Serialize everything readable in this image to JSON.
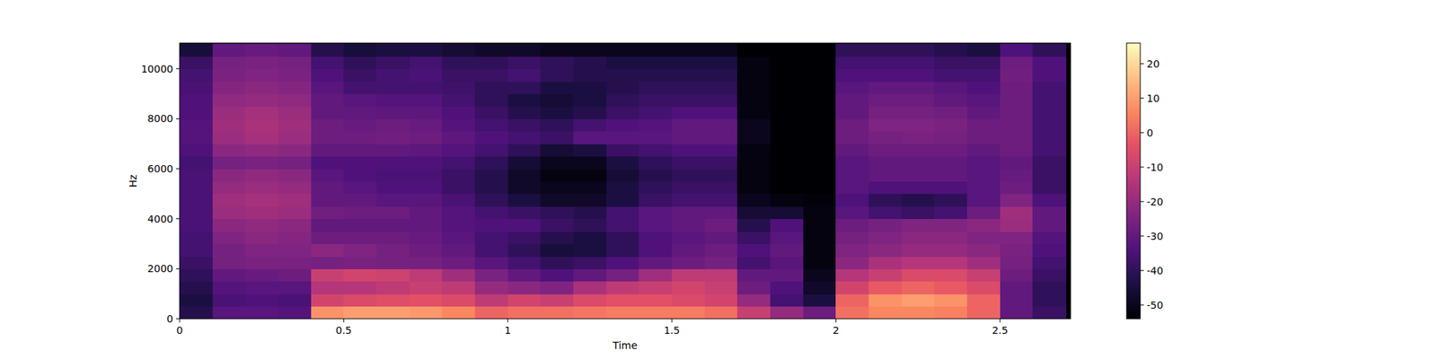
{
  "chart_data": {
    "type": "heatmap",
    "xlabel": "Time",
    "ylabel": "Hz",
    "x": [
      0,
      0.1,
      0.2,
      0.3,
      0.4,
      0.5,
      0.6,
      0.7,
      0.8,
      0.9,
      1.0,
      1.1,
      1.2,
      1.3,
      1.4,
      1.5,
      1.6,
      1.7,
      1.8,
      1.9,
      2.0,
      2.1,
      2.2,
      2.3,
      2.4,
      2.5,
      2.6,
      2.7
    ],
    "y": [
      0,
      500,
      1000,
      1500,
      2000,
      2500,
      3000,
      3500,
      4000,
      4500,
      5000,
      5500,
      6000,
      6500,
      7000,
      7500,
      8000,
      8500,
      9000,
      9500,
      10000,
      10500,
      11000
    ],
    "xlim": [
      0,
      2.715
    ],
    "ylim": [
      0,
      11025
    ],
    "xticks": [
      0,
      0.5,
      1,
      1.5,
      2,
      2.5
    ],
    "yticks": [
      0,
      2000,
      4000,
      6000,
      8000,
      10000
    ],
    "colorbar_lim": [
      -54,
      26
    ],
    "colorbar_ticks": [
      -50,
      -40,
      -30,
      -20,
      -10,
      0,
      10,
      20
    ],
    "cells": [
      [
        -42,
        -44,
        -42,
        -40,
        -38,
        -36,
        -36,
        -35,
        -35,
        -35,
        -35,
        -35,
        -36,
        -34,
        -33,
        -33,
        -34,
        -34,
        -35,
        -36,
        -38,
        -45
      ],
      [
        -32,
        -35,
        -33,
        -30,
        -26,
        -26,
        -24,
        -22,
        -19,
        -18,
        -20,
        -22,
        -26,
        -22,
        -19,
        -18,
        -19,
        -21,
        -23,
        -25,
        -26,
        -30
      ],
      [
        -32,
        -34,
        -32,
        -29,
        -25,
        -24,
        -22,
        -21,
        -18,
        -17,
        -19,
        -21,
        -25,
        -21,
        -17,
        -16,
        -17,
        -20,
        -22,
        -24,
        -25,
        -29
      ],
      [
        -33,
        -35,
        -32,
        -28,
        -25,
        -24,
        -23,
        -22,
        -19,
        -18,
        -20,
        -22,
        -26,
        -22,
        -19,
        -18,
        -19,
        -21,
        -23,
        -25,
        -26,
        -30
      ],
      [
        8,
        -8,
        -14,
        -10,
        -26,
        -22,
        -28,
        -30,
        -27,
        -30,
        -30,
        -32,
        -34,
        -30,
        -28,
        -28,
        -30,
        -30,
        -32,
        -34,
        -36,
        -42
      ],
      [
        10,
        -6,
        -14,
        -8,
        -25,
        -24,
        -28,
        -30,
        -28,
        -30,
        -32,
        -34,
        -34,
        -30,
        -28,
        -29,
        -30,
        -32,
        -36,
        -38,
        -40,
        -45
      ],
      [
        10,
        -5,
        -12,
        -9,
        -26,
        -26,
        -28,
        -30,
        -28,
        -32,
        -34,
        -35,
        -34,
        -30,
        -27,
        -28,
        -31,
        -33,
        -36,
        -36,
        -38,
        -44
      ],
      [
        9,
        -4,
        -10,
        -12,
        -26,
        -28,
        -29,
        -30,
        -30,
        -32,
        -34,
        -35,
        -34,
        -31,
        -28,
        -29,
        -31,
        -33,
        -36,
        -35,
        -36,
        -44
      ],
      [
        6,
        -6,
        -12,
        -18,
        -28,
        -30,
        -32,
        -33,
        -33,
        -35,
        -38,
        -38,
        -36,
        -33,
        -31,
        -33,
        -34,
        -36,
        -37,
        -38,
        -40,
        -46
      ],
      [
        0,
        -12,
        -20,
        -25,
        -32,
        -36,
        -36,
        -34,
        -36,
        -40,
        -42,
        -42,
        -40,
        -36,
        -34,
        -36,
        -38,
        -40,
        -40,
        -38,
        -40,
        -48
      ],
      [
        2,
        -8,
        -22,
        -30,
        -36,
        -40,
        -38,
        -34,
        -38,
        -44,
        -48,
        -48,
        -46,
        -40,
        -36,
        -38,
        -42,
        -44,
        -40,
        -36,
        -38,
        -48
      ],
      [
        2,
        -10,
        -24,
        -34,
        -40,
        -45,
        -42,
        -38,
        -40,
        -48,
        -50,
        -52,
        -50,
        -46,
        -38,
        -40,
        -44,
        -46,
        -44,
        -40,
        -40,
        -50
      ],
      [
        3,
        -6,
        -16,
        -30,
        -38,
        -44,
        -44,
        -40,
        -42,
        -48,
        -50,
        -52,
        -50,
        -44,
        -32,
        -36,
        -42,
        -44,
        -44,
        -42,
        -42,
        -50
      ],
      [
        4,
        -4,
        -12,
        -26,
        -34,
        -40,
        -40,
        -36,
        -36,
        -44,
        -44,
        -46,
        -44,
        -38,
        -32,
        -34,
        -38,
        -40,
        -42,
        -42,
        -44,
        -50
      ],
      [
        4,
        -4,
        -10,
        -18,
        -30,
        -34,
        -34,
        -32,
        -32,
        -38,
        -40,
        -42,
        -40,
        -36,
        -32,
        -33,
        -36,
        -38,
        -40,
        -42,
        -44,
        -50
      ],
      [
        4,
        -6,
        -8,
        -12,
        -28,
        -30,
        -32,
        -30,
        -30,
        -36,
        -38,
        -40,
        -38,
        -34,
        -30,
        -30,
        -34,
        -38,
        -40,
        -42,
        -44,
        -50
      ],
      [
        2,
        -8,
        -10,
        -12,
        -26,
        -28,
        -30,
        -28,
        -30,
        -36,
        -38,
        -40,
        -38,
        -34,
        -30,
        -30,
        -34,
        -38,
        -40,
        -42,
        -44,
        -50
      ],
      [
        -10,
        -20,
        -28,
        -30,
        -36,
        -34,
        -38,
        -42,
        -46,
        -50,
        -52,
        -52,
        -52,
        -52,
        -50,
        -50,
        -52,
        -52,
        -52,
        -52,
        -52,
        -54
      ],
      [
        -20,
        -36,
        -34,
        -30,
        -32,
        -30,
        -32,
        -34,
        -46,
        -52,
        -54,
        -54,
        -54,
        -54,
        -54,
        -54,
        -54,
        -54,
        -54,
        -54,
        -54,
        -54
      ],
      [
        -28,
        -44,
        -48,
        -50,
        -52,
        -52,
        -52,
        -52,
        -52,
        -53,
        -54,
        -54,
        -54,
        -54,
        -54,
        -54,
        -54,
        -54,
        -54,
        -54,
        -54,
        -54
      ],
      [
        2,
        0,
        -8,
        -14,
        -22,
        -24,
        -26,
        -28,
        -32,
        -34,
        -32,
        -32,
        -32,
        -30,
        -28,
        -28,
        -30,
        -30,
        -32,
        -34,
        -36,
        -40
      ],
      [
        6,
        8,
        -2,
        -10,
        -16,
        -22,
        -24,
        -26,
        -36,
        -40,
        -34,
        -30,
        -30,
        -28,
        -26,
        -24,
        -26,
        -28,
        -30,
        -34,
        -36,
        -40
      ],
      [
        6,
        10,
        0,
        -6,
        -14,
        -20,
        -22,
        -24,
        -38,
        -42,
        -34,
        -30,
        -30,
        -28,
        -25,
        -24,
        -26,
        -28,
        -30,
        -34,
        -36,
        -40
      ],
      [
        5,
        8,
        -2,
        -6,
        -14,
        -20,
        -22,
        -24,
        -36,
        -40,
        -34,
        -30,
        -30,
        -28,
        -26,
        -25,
        -27,
        -30,
        -32,
        -36,
        -38,
        -42
      ],
      [
        0,
        0,
        -6,
        -10,
        -18,
        -22,
        -24,
        -22,
        -28,
        -32,
        -32,
        -32,
        -32,
        -30,
        -28,
        -28,
        -30,
        -32,
        -34,
        -36,
        -38,
        -44
      ],
      [
        -30,
        -30,
        -30,
        -28,
        -26,
        -25,
        -24,
        -19,
        -18,
        -24,
        -28,
        -29,
        -30,
        -28,
        -28,
        -28,
        -28,
        -28,
        -28,
        -27,
        -28,
        -34
      ],
      [
        -38,
        -40,
        -40,
        -38,
        -36,
        -34,
        -33,
        -30,
        -30,
        -34,
        -38,
        -38,
        -38,
        -36,
        -36,
        -36,
        -36,
        -36,
        -36,
        -34,
        -34,
        -40
      ]
    ]
  }
}
